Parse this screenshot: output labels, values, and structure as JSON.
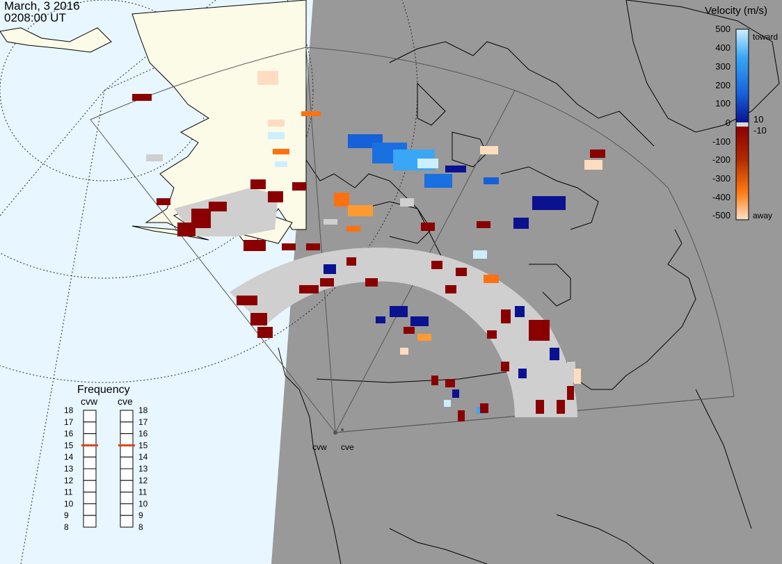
{
  "header": {
    "date": "March, 3 2016",
    "time": "0208:00 UT"
  },
  "velocity_scale": {
    "title": "Velocity (m/s)",
    "ticks": [
      "500",
      "400",
      "300",
      "200",
      "100",
      "0",
      "-100",
      "-200",
      "-300",
      "-400",
      "-500"
    ],
    "extra_ticks": [
      "10",
      "-10"
    ],
    "toward_label": "toward",
    "away_label": "away"
  },
  "frequency_panel": {
    "title": "Frequency",
    "radars": [
      "cvw",
      "cve"
    ],
    "scale": [
      "18",
      "17",
      "16",
      "15",
      "14",
      "13",
      "12",
      "11",
      "10",
      "9",
      "8"
    ],
    "cvw_value": 15,
    "cve_value": 15
  },
  "radar_sites": [
    "cvw",
    "cve"
  ],
  "colors": {
    "ocean": "#e8f6ff",
    "land_day": "#fcfbe8",
    "night": "#999999",
    "ground_scatter": "#cfcfcf",
    "frequency_marker": "#d9441a"
  }
}
